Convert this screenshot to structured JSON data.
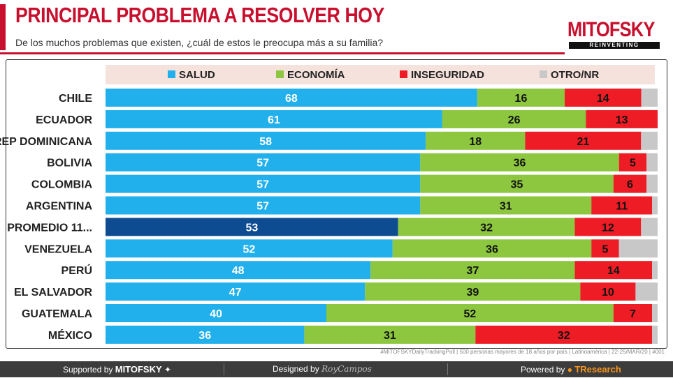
{
  "header": {
    "title": "PRINCIPAL PROBLEMA A RESOLVER HOY",
    "subtitle": "De los muchos problemas que existen, ¿cuál de estos le preocupa más a su familia?",
    "brand": "MITOFSKY",
    "brand_tagline": "REINVENTING RESEARCH"
  },
  "colors": {
    "title_red": "#c8102e",
    "salud": "#22b0ec",
    "promedio": "#0e4c92",
    "economia": "#8dc63f",
    "inseguridad": "#ee1c25",
    "otro": "#c8c8c8",
    "legend_bg": "#f5e2dc"
  },
  "chart_data": {
    "type": "bar",
    "orientation": "horizontal",
    "stacked": true,
    "categories": [
      "CHILE",
      "ECUADOR",
      "REP DOMINICANA",
      "BOLIVIA",
      "COLOMBIA",
      "ARGENTINA",
      "PROMEDIO 11...",
      "VENEZUELA",
      "PERÚ",
      "EL SALVADOR",
      "GUATEMALA",
      "MÉXICO"
    ],
    "series": [
      {
        "name": "SALUD",
        "values": [
          68,
          61,
          58,
          57,
          57,
          57,
          53,
          52,
          48,
          47,
          40,
          36
        ]
      },
      {
        "name": "ECONOMÍA",
        "values": [
          16,
          26,
          18,
          36,
          35,
          31,
          32,
          36,
          37,
          39,
          52,
          31
        ]
      },
      {
        "name": "INSEGURIDAD",
        "values": [
          14,
          13,
          21,
          5,
          6,
          11,
          12,
          5,
          14,
          10,
          7,
          32
        ]
      },
      {
        "name": "OTRO/NR",
        "values": [
          3,
          0,
          3,
          2,
          2,
          1,
          3,
          7,
          1,
          4,
          1,
          1
        ]
      }
    ],
    "data_labels": {
      "SALUD": [
        "68",
        "61",
        "58",
        "57",
        "57",
        "57",
        "53",
        "52",
        "48",
        "47",
        "40",
        "36"
      ],
      "ECONOMÍA": [
        "16",
        "26",
        "18",
        "36",
        "35",
        "31",
        "32",
        "36",
        "37",
        "39",
        "52",
        "31"
      ],
      "INSEGURIDAD": [
        "14",
        "13",
        "21",
        "5",
        "6",
        "11",
        "12",
        "5",
        "14",
        "10",
        "7",
        "32"
      ]
    },
    "highlight_category": "PROMEDIO 11...",
    "xlim": [
      0,
      100
    ],
    "legend_position": "top",
    "grid": false
  },
  "footer": {
    "note": "#MITOFSKYDailyTrackingPoll | 500 personas mayores de 18 años por país | Latinoamérica | 22-25/MAR/20 | #001",
    "supported_label": "Supported by",
    "supported_brand": "MITOFSKY",
    "designed_label": "Designed by",
    "designed_brand": "RoyCampos",
    "powered_label": "Powered by",
    "powered_brand": "TResearch"
  }
}
